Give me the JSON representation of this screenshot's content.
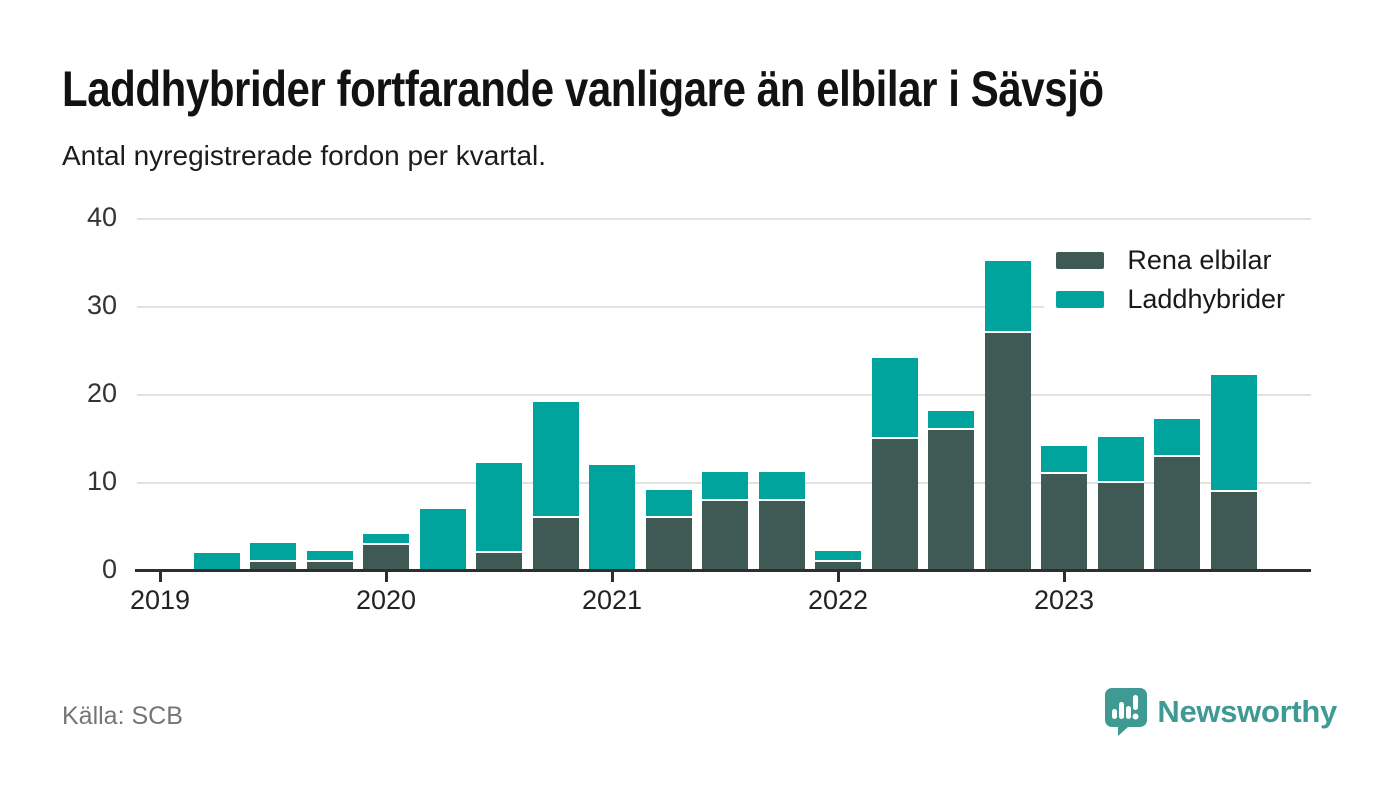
{
  "header": {
    "title": "Laddhybrider fortfarande vanligare än elbilar i Sävsjö",
    "subtitle": "Antal nyregistrerade fordon per kvartal."
  },
  "chart_data": {
    "type": "bar",
    "stacked": true,
    "x": [
      "2019-Q1",
      "2019-Q2",
      "2019-Q3",
      "2019-Q4",
      "2020-Q1",
      "2020-Q2",
      "2020-Q3",
      "2020-Q4",
      "2021-Q1",
      "2021-Q2",
      "2021-Q3",
      "2021-Q4",
      "2022-Q1",
      "2022-Q2",
      "2022-Q3",
      "2022-Q4",
      "2023-Q1",
      "2023-Q2",
      "2023-Q3",
      "2023-Q4"
    ],
    "series": [
      {
        "name": "Rena elbilar",
        "color": "#3f5a55",
        "values": [
          0,
          0,
          1,
          1,
          3,
          0,
          2,
          6,
          0,
          6,
          8,
          8,
          1,
          15,
          16,
          27,
          11,
          10,
          13,
          9
        ]
      },
      {
        "name": "Laddhybrider",
        "color": "#00a49c",
        "values": [
          0,
          2,
          2,
          1,
          1,
          7,
          10,
          13,
          12,
          3,
          3,
          3,
          1,
          9,
          2,
          8,
          3,
          5,
          4,
          13
        ]
      }
    ],
    "totals": [
      0,
      2,
      3,
      2,
      4,
      7,
      12,
      19,
      12,
      9,
      11,
      11,
      2,
      24,
      18,
      35,
      14,
      15,
      17,
      22
    ],
    "ylim": [
      0,
      40
    ],
    "yticks": [
      0,
      10,
      20,
      30,
      40
    ],
    "xticks": [
      "2019",
      "2020",
      "2021",
      "2022",
      "2023"
    ],
    "grid": "horizontal",
    "legend_position": "top-right"
  },
  "footer": {
    "source": "Källa: SCB",
    "brand": "Newsworthy",
    "brand_color": "#3f9a94",
    "brand_icon": "newsworthy-chart-bubble-icon"
  },
  "colors": {
    "background": "#ffffff",
    "gridline": "#e2e2e2",
    "axis": "#2e2e2e",
    "elbilar": "#3f5a55",
    "laddhybrider": "#00a49c"
  }
}
